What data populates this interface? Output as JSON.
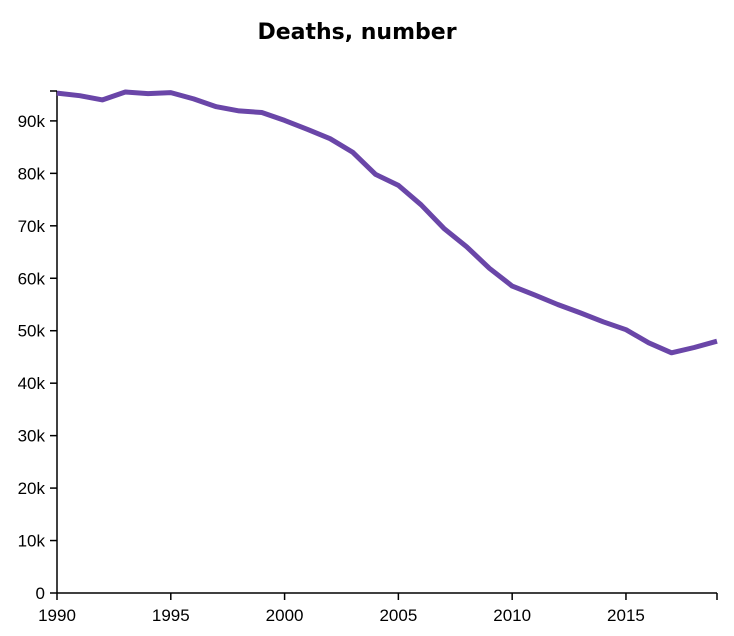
{
  "chart_data": {
    "type": "line",
    "title": "Deaths, number",
    "xlabel": "",
    "ylabel": "",
    "xlim": [
      1990,
      2019
    ],
    "ylim": [
      0,
      95700
    ],
    "x_ticks": [
      1990,
      1995,
      2000,
      2005,
      2010,
      2015
    ],
    "x_tick_labels": [
      "1990",
      "1995",
      "2000",
      "2005",
      "2010",
      "2015"
    ],
    "y_ticks": [
      0,
      10000,
      20000,
      30000,
      40000,
      50000,
      60000,
      70000,
      80000,
      90000
    ],
    "y_tick_labels": [
      "0",
      "10k",
      "20k",
      "30k",
      "40k",
      "50k",
      "60k",
      "70k",
      "80k",
      "90k"
    ],
    "grid": false,
    "line_color": "#6a46a8",
    "series": [
      {
        "x": [
          1990,
          1991,
          1992,
          1993,
          1994,
          1995,
          1996,
          1997,
          1998,
          1999,
          2000,
          2001,
          2002,
          2003,
          2004,
          2005,
          2006,
          2007,
          2008,
          2009,
          2010,
          2011,
          2012,
          2013,
          2014,
          2015,
          2016,
          2017,
          2018,
          2019
        ],
        "values": [
          95300,
          94800,
          94000,
          95500,
          95200,
          95400,
          94200,
          92700,
          91900,
          91600,
          90100,
          88400,
          86600,
          84000,
          79800,
          77700,
          74000,
          69500,
          66000,
          61900,
          58500,
          56800,
          55000,
          53400,
          51700,
          50200,
          47700,
          45800,
          46800,
          48000
        ]
      }
    ]
  }
}
